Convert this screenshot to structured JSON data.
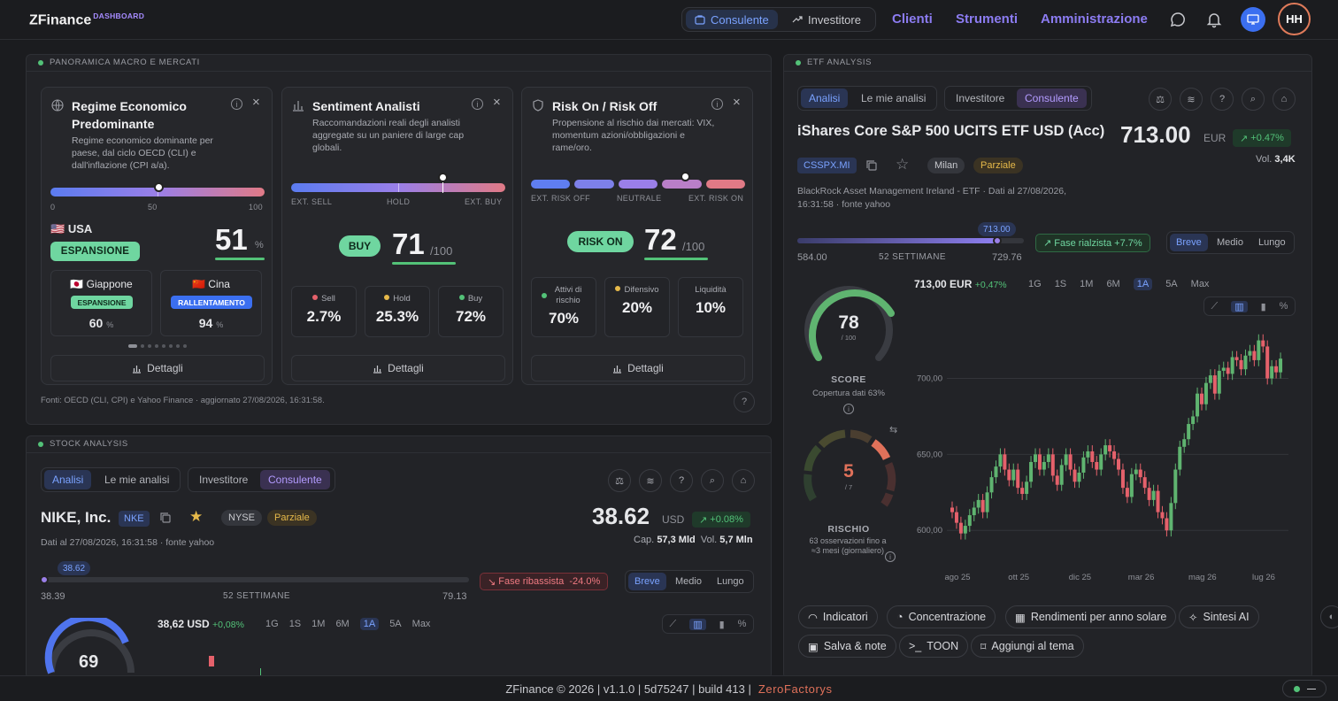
{
  "brand": {
    "name": "ZFinance",
    "badge": "DASHBOARD"
  },
  "mode": {
    "consulente": "Consulente",
    "investitore": "Investitore",
    "active": "Consulente"
  },
  "nav": [
    "Clienti",
    "Strumenti",
    "Amministrazione"
  ],
  "user": {
    "initials": "HH"
  },
  "macro": {
    "header": "PANORAMICA MACRO E MERCATI",
    "regime": {
      "title": "Regime Economico Predominante",
      "desc": "Regime economico dominante per paese, dal ciclo OECD (CLI) e dall'inflazione (CPI a/a).",
      "scale_min": "0",
      "scale_mid": "50",
      "scale_max": "100",
      "country": "USA",
      "flag": "🇺🇸",
      "status": "ESPANSIONE",
      "score": "51",
      "unit": "%",
      "level": 51,
      "others": [
        {
          "flag": "🇯🇵",
          "name": "Giappone",
          "status": "ESPANSIONE",
          "score": "60",
          "unit": "%"
        },
        {
          "flag": "🇨🇳",
          "name": "Cina",
          "status": "RALLENTAMENTO",
          "score": "94",
          "unit": "%"
        }
      ],
      "button": "Dettagli"
    },
    "sentiment": {
      "title": "Sentiment Analisti",
      "desc": "Raccomandazioni reali degli analisti aggregate su un paniere di large cap globali.",
      "left": "EXT. SELL",
      "mid": "HOLD",
      "right": "EXT. BUY",
      "badge": "BUY",
      "score": "71",
      "of": "/100",
      "level": 71,
      "stats": [
        {
          "label": "Sell",
          "value": "2.7%",
          "color": "#e5616b"
        },
        {
          "label": "Hold",
          "value": "25.3%",
          "color": "#e6b94a"
        },
        {
          "label": "Buy",
          "value": "72%",
          "color": "#53c278"
        }
      ],
      "button": "Dettagli"
    },
    "risk": {
      "title": "Risk On / Risk Off",
      "desc": "Propensione al rischio dai mercati: VIX, momentum azioni/obbligazioni e rame/oro.",
      "left": "EXT. RISK OFF",
      "mid": "NEUTRALE",
      "right": "EXT. RISK ON",
      "badge": "RISK ON",
      "score": "72",
      "of": "/100",
      "level": 72,
      "stats": [
        {
          "label": "Attivi di rischio",
          "value": "70%",
          "color": "#53c278"
        },
        {
          "label": "Difensivo",
          "value": "20%",
          "color": "#e6b94a"
        },
        {
          "label": "Liquidità",
          "value": "10%",
          "color": ""
        }
      ],
      "button": "Dettagli"
    },
    "sources": "Fonti: OECD (CLI, CPI) e Yahoo Finance · aggiornato 27/08/2026, 16:31:58."
  },
  "stock": {
    "header": "STOCK ANALYSIS",
    "tabs": [
      "Analisi",
      "Le mie analisi"
    ],
    "roles": [
      "Investitore",
      "Consulente"
    ],
    "name": "NIKE, Inc.",
    "ticker": "NKE",
    "exchange": "NYSE",
    "coverage": "Parziale",
    "price": "38.62",
    "currency": "USD",
    "change": "+0.08%",
    "cap_label": "Cap.",
    "cap": "57,3 Mld",
    "vol_label": "Vol.",
    "vol": "5,7 Mln",
    "meta": "Dati al 27/08/2026, 16:31:58 · fonte yahoo",
    "low": "38.39",
    "high": "79.13",
    "range_label": "52 SETTIMANE",
    "marker": "38.62",
    "phase": "Fase ribassista",
    "phase_pct": "-24.0%",
    "horizons": [
      "Breve",
      "Medio",
      "Lungo"
    ],
    "quote": "38,62 USD",
    "quote_change": "+0,08%",
    "ranges": [
      "1G",
      "1S",
      "1M",
      "6M",
      "1A",
      "5A",
      "Max"
    ],
    "active_range": "1A",
    "score": "69"
  },
  "etf": {
    "header": "ETF ANALYSIS",
    "tabs": [
      "Analisi",
      "Le mie analisi"
    ],
    "roles": [
      "Investitore",
      "Consulente"
    ],
    "name": "iShares Core S&P 500 UCITS ETF USD (Acc)",
    "ticker": "CSSPX.MI",
    "exchange": "Milan",
    "coverage": "Parziale",
    "price": "713.00",
    "currency": "EUR",
    "change": "+0.47%",
    "vol_label": "Vol.",
    "vol": "3,4K",
    "meta1": "BlackRock Asset Management Ireland - ETF · Dati al 27/08/2026,",
    "meta2": "16:31:58 · fonte yahoo",
    "low": "584.00",
    "high": "729.76",
    "range_label": "52 SETTIMANE",
    "marker": "713.00",
    "phase": "Fase rialzista",
    "phase_pct": "+7.7%",
    "horizons": [
      "Breve",
      "Medio",
      "Lungo"
    ],
    "quote": "713,00 EUR",
    "quote_change": "+0,47%",
    "ranges": [
      "1G",
      "1S",
      "1M",
      "6M",
      "1A",
      "5A",
      "Max"
    ],
    "active_range": "1A",
    "score": "78",
    "score_of": "/ 100",
    "score_label": "SCORE",
    "score_sub": "Copertura dati 63%",
    "risk": "5",
    "risk_of": "/ 7",
    "risk_label": "RISCHIO",
    "risk_sub": "63 osservazioni fino a ≈3 mesi (giornaliero)",
    "buttons": [
      "Indicatori",
      "Concentrazione",
      "Rendimenti per anno solare",
      "Sintesi AI",
      "Salva & note",
      "TOON",
      "Aggiungi al tema"
    ]
  },
  "chart_data": {
    "type": "candlestick",
    "title": "",
    "x_ticks": [
      "ago 25",
      "ott 25",
      "dic 25",
      "mar 26",
      "mag 26",
      "lug 26"
    ],
    "y_ticks": [
      "600,00",
      "650,00",
      "700,00"
    ],
    "ylim": [
      585,
      730
    ],
    "close": [
      612,
      605,
      598,
      603,
      610,
      615,
      620,
      612,
      625,
      635,
      642,
      650,
      640,
      633,
      640,
      628,
      624,
      632,
      645,
      650,
      640,
      645,
      650,
      636,
      630,
      643,
      650,
      640,
      632,
      638,
      648,
      652,
      645,
      640,
      650,
      656,
      652,
      647,
      640,
      628,
      622,
      637,
      640,
      635,
      628,
      620,
      626,
      612,
      608,
      600,
      618,
      640,
      655,
      660,
      670,
      675,
      690,
      683,
      697,
      702,
      690,
      705,
      707,
      703,
      714,
      712,
      706,
      715,
      718,
      712,
      725,
      721,
      700,
      708,
      704,
      713
    ]
  },
  "footer": {
    "text": "ZFinance © 2026 | v1.1.0 | 5d75247 | build 413 |",
    "company": "ZeroFactorys"
  }
}
